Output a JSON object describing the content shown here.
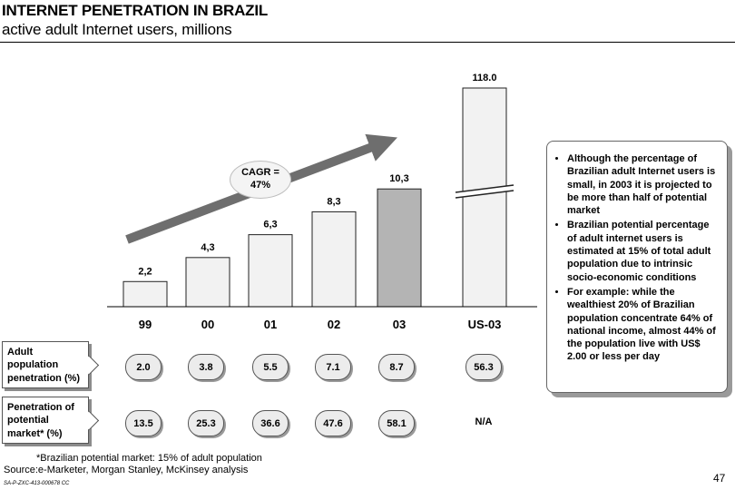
{
  "page": {
    "title": "INTERNET PENETRATION IN BRAZIL",
    "subtitle": "active adult Internet users, millions",
    "cagr_text": "CAGR = 47%",
    "footnote": "*Brazilian potential market: 15% of adult population",
    "source": "Source:e-Marketer, Morgan Stanley, McKinsey analysis",
    "ref": "SA-P-ZXC-413-000678 CC",
    "page_number": "47"
  },
  "chart_data": {
    "type": "bar",
    "title": "INTERNET PENETRATION IN BRAZIL",
    "subtitle": "active adult Internet users, millions",
    "categories": [
      "99",
      "00",
      "01",
      "02",
      "03",
      "US-03"
    ],
    "values": [
      2.2,
      4.3,
      6.3,
      8.3,
      10.3,
      118.0
    ],
    "value_labels": [
      "2,2",
      "4,3",
      "6,3",
      "8,3",
      "10,3",
      "118.0"
    ],
    "axis_break": "US-03",
    "annotation": "CAGR = 47%",
    "highlight_category": "03",
    "colors": {
      "bar_light": "#f2f2f2",
      "bar_highlight": "#b4b4b4",
      "arrow": "#6e6e6e"
    }
  },
  "table": {
    "rows": [
      {
        "label": "Adult population penetration (%)",
        "values": [
          "2.0",
          "3.8",
          "5.5",
          "7.1",
          "8.7",
          "56.3"
        ]
      },
      {
        "label": "Penetration of potential market* (%)",
        "values": [
          "13.5",
          "25.3",
          "36.6",
          "47.6",
          "58.1",
          "N/A"
        ]
      }
    ]
  },
  "notes": [
    "Although the percentage of Brazilian adult Internet users is small, in 2003 it is projected to be more than half of potential market",
    "Brazilian potential percentage of adult internet users is estimated at 15% of total adult population due to intrinsic socio-economic conditions",
    "For example: while the wealthiest 20% of Brazilian population concentrate 64% of national income, almost 44% of the population live with US$ 2.00 or less per day"
  ]
}
